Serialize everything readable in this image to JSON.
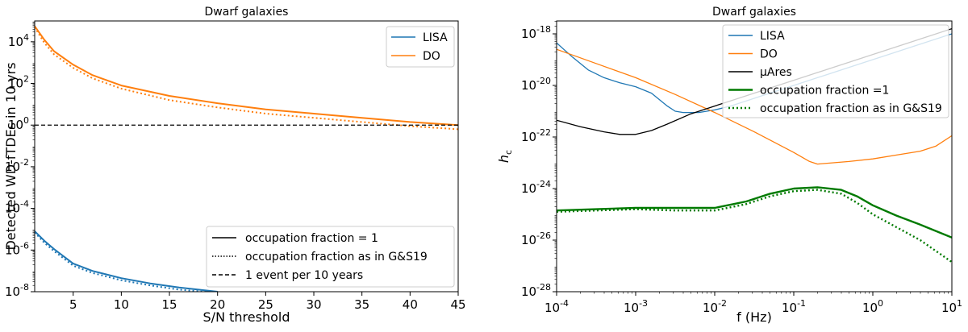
{
  "chart_data": [
    {
      "type": "line",
      "title": "Dwarf galaxies",
      "xlabel": "S/N threshold",
      "ylabel": "Detected WD-fTDEs in 10 yrs",
      "xscale": "linear",
      "yscale": "log",
      "xlim": [
        1,
        45
      ],
      "ylim_exp": [
        -8,
        5
      ],
      "xticks": [
        {
          "v": 5,
          "label": "5"
        },
        {
          "v": 10,
          "label": "10"
        },
        {
          "v": 15,
          "label": "15"
        },
        {
          "v": 20,
          "label": "20"
        },
        {
          "v": 25,
          "label": "25"
        },
        {
          "v": 30,
          "label": "30"
        },
        {
          "v": 35,
          "label": "35"
        },
        {
          "v": 40,
          "label": "40"
        },
        {
          "v": 45,
          "label": "45"
        }
      ],
      "yticks": [
        {
          "v": -8,
          "base": "10",
          "exp": "-8"
        },
        {
          "v": -6,
          "base": "10",
          "exp": "-6"
        },
        {
          "v": -4,
          "base": "10",
          "exp": "-4"
        },
        {
          "v": -2,
          "base": "10",
          "exp": "-2"
        },
        {
          "v": 0,
          "base": "10",
          "exp": "0"
        },
        {
          "v": 2,
          "base": "10",
          "exp": "2"
        },
        {
          "v": 4,
          "base": "10",
          "exp": "4"
        }
      ],
      "series": [
        {
          "name": "LISA",
          "color": "#1f77b4",
          "style": "solid",
          "x": [
            1,
            2,
            3,
            4,
            5,
            7,
            10,
            13,
            16,
            20
          ],
          "y_exp": [
            -5.1,
            -5.55,
            -5.95,
            -6.3,
            -6.65,
            -7.0,
            -7.35,
            -7.6,
            -7.8,
            -8.0
          ]
        },
        {
          "name": "",
          "color": "#1f77b4",
          "style": "dotted",
          "x": [
            1,
            2,
            3,
            4,
            5,
            7,
            10,
            13,
            16,
            20
          ],
          "y_exp": [
            -5.15,
            -5.65,
            -6.05,
            -6.4,
            -6.75,
            -7.1,
            -7.45,
            -7.7,
            -7.9,
            -8.05
          ]
        },
        {
          "name": "DO",
          "color": "#ff7f0e",
          "style": "solid",
          "x": [
            1,
            2,
            3,
            5,
            7,
            10,
            15,
            20,
            25,
            30,
            35,
            40,
            45
          ],
          "y_exp": [
            4.75,
            4.1,
            3.55,
            2.9,
            2.4,
            1.9,
            1.4,
            1.05,
            0.75,
            0.55,
            0.35,
            0.15,
            0.0
          ]
        },
        {
          "name": "",
          "color": "#ff7f0e",
          "style": "dotted",
          "x": [
            1,
            2,
            3,
            5,
            7,
            10,
            15,
            20,
            25,
            30,
            35,
            40,
            45
          ],
          "y_exp": [
            4.7,
            3.95,
            3.4,
            2.75,
            2.25,
            1.75,
            1.2,
            0.85,
            0.55,
            0.35,
            0.15,
            -0.05,
            -0.2
          ]
        }
      ],
      "hline": {
        "y_exp": 0,
        "color": "#000000",
        "style": "dashed"
      },
      "legend_top": {
        "placement": "top-right",
        "entries": [
          {
            "label": "LISA",
            "color": "#1f77b4"
          },
          {
            "label": "DO",
            "color": "#ff7f0e"
          }
        ]
      },
      "legend_bottom": {
        "placement": "lower-right",
        "entries": [
          {
            "label": "occupation fraction = 1",
            "style": "solid"
          },
          {
            "label": "occupation fraction as in G&S19",
            "style": "dotted"
          },
          {
            "label": "1 event per 10 years",
            "style": "dashed"
          }
        ]
      }
    },
    {
      "type": "line",
      "title": "Dwarf galaxies",
      "xlabel": "f (Hz)",
      "ylabel": "h",
      "ylabel_sub": "c",
      "xscale": "log",
      "yscale": "log",
      "xlim_exp": [
        -4,
        1
      ],
      "ylim_exp": [
        -28,
        -17.5
      ],
      "xticks": [
        {
          "v": -4,
          "base": "10",
          "exp": "-4"
        },
        {
          "v": -3,
          "base": "10",
          "exp": "-3"
        },
        {
          "v": -2,
          "base": "10",
          "exp": "-2"
        },
        {
          "v": -1,
          "base": "10",
          "exp": "-1"
        },
        {
          "v": 0,
          "base": "10",
          "exp": "0"
        },
        {
          "v": 1,
          "base": "10",
          "exp": "1"
        }
      ],
      "yticks": [
        {
          "v": -28,
          "base": "10",
          "exp": "-28"
        },
        {
          "v": -26,
          "base": "10",
          "exp": "-26"
        },
        {
          "v": -24,
          "base": "10",
          "exp": "-24"
        },
        {
          "v": -22,
          "base": "10",
          "exp": "-22"
        },
        {
          "v": -20,
          "base": "10",
          "exp": "-20"
        },
        {
          "v": -18,
          "base": "10",
          "exp": "-18"
        }
      ],
      "series": [
        {
          "name": "LISA",
          "color": "#1f77b4",
          "style": "solid",
          "width": 1.3,
          "x_exp": [
            -4,
            -3.8,
            -3.6,
            -3.4,
            -3.2,
            -3.0,
            -2.8,
            -2.6,
            -2.5,
            -2.4,
            -2.2,
            -2.0,
            -1.8,
            -1.6,
            -1.4,
            -1.2,
            -1.0,
            -0.6,
            -0.2,
            0.2,
            0.6,
            1.0
          ],
          "y_exp": [
            -18.35,
            -18.9,
            -19.4,
            -19.7,
            -19.9,
            -20.05,
            -20.3,
            -20.8,
            -21.0,
            -21.05,
            -21.05,
            -20.95,
            -20.8,
            -20.6,
            -20.4,
            -20.2,
            -20.0,
            -19.6,
            -19.2,
            -18.8,
            -18.4,
            -18.0
          ]
        },
        {
          "name": "DO",
          "color": "#ff7f0e",
          "style": "solid",
          "width": 1.3,
          "x_exp": [
            -4,
            -3.5,
            -3.0,
            -2.5,
            -2.0,
            -1.5,
            -1.0,
            -0.8,
            -0.7,
            -0.5,
            -0.3,
            0.0,
            0.3,
            0.6,
            0.8,
            1.0
          ],
          "y_exp": [
            -18.6,
            -19.15,
            -19.7,
            -20.35,
            -21.05,
            -21.8,
            -22.6,
            -22.95,
            -23.05,
            -23.0,
            -22.95,
            -22.85,
            -22.7,
            -22.55,
            -22.35,
            -21.95
          ]
        },
        {
          "name": "μAres",
          "color": "#000000",
          "style": "solid",
          "width": 1.3,
          "x_exp": [
            -4,
            -3.7,
            -3.4,
            -3.2,
            -3.0,
            -2.8,
            -2.6,
            -2.3,
            -2.0,
            -1.5,
            -1.0,
            -0.5,
            0.0,
            0.5,
            1.0
          ],
          "y_exp": [
            -21.35,
            -21.6,
            -21.8,
            -21.9,
            -21.9,
            -21.75,
            -21.5,
            -21.1,
            -20.8,
            -20.3,
            -19.8,
            -19.3,
            -18.8,
            -18.3,
            -17.8
          ]
        },
        {
          "name": "occupation fraction =1",
          "color": "#007a00",
          "style": "solid",
          "width": 2.4,
          "x_exp": [
            -4,
            -3.5,
            -3.0,
            -2.5,
            -2.0,
            -1.6,
            -1.3,
            -1.0,
            -0.7,
            -0.4,
            -0.2,
            0.0,
            0.3,
            0.6,
            1.0
          ],
          "y_exp": [
            -24.85,
            -24.8,
            -24.75,
            -24.75,
            -24.75,
            -24.5,
            -24.2,
            -24.0,
            -23.95,
            -24.05,
            -24.3,
            -24.65,
            -25.05,
            -25.4,
            -25.9
          ]
        },
        {
          "name": "occupation fraction as in G&S19",
          "color": "#007a00",
          "style": "dotted",
          "width": 2.4,
          "x_exp": [
            -4,
            -3.5,
            -3.0,
            -2.5,
            -2.0,
            -1.6,
            -1.3,
            -1.0,
            -0.7,
            -0.4,
            -0.2,
            0.0,
            0.3,
            0.6,
            1.0
          ],
          "y_exp": [
            -24.9,
            -24.85,
            -24.8,
            -24.85,
            -24.85,
            -24.6,
            -24.3,
            -24.1,
            -24.05,
            -24.2,
            -24.55,
            -25.0,
            -25.5,
            -26.0,
            -26.85
          ]
        }
      ],
      "legend": {
        "placement": "top-right",
        "entries": [
          {
            "label": "LISA",
            "color": "#1f77b4",
            "style": "solid",
            "width": 1.5
          },
          {
            "label": "DO",
            "color": "#ff7f0e",
            "style": "solid",
            "width": 1.5
          },
          {
            "label": "μAres",
            "color": "#000000",
            "style": "solid",
            "width": 1.5
          },
          {
            "label": "occupation fraction =1",
            "color": "#007a00",
            "style": "solid",
            "width": 2.4
          },
          {
            "label": "occupation fraction as in G&S19",
            "color": "#007a00",
            "style": "dotted",
            "width": 2.4
          }
        ]
      }
    }
  ]
}
